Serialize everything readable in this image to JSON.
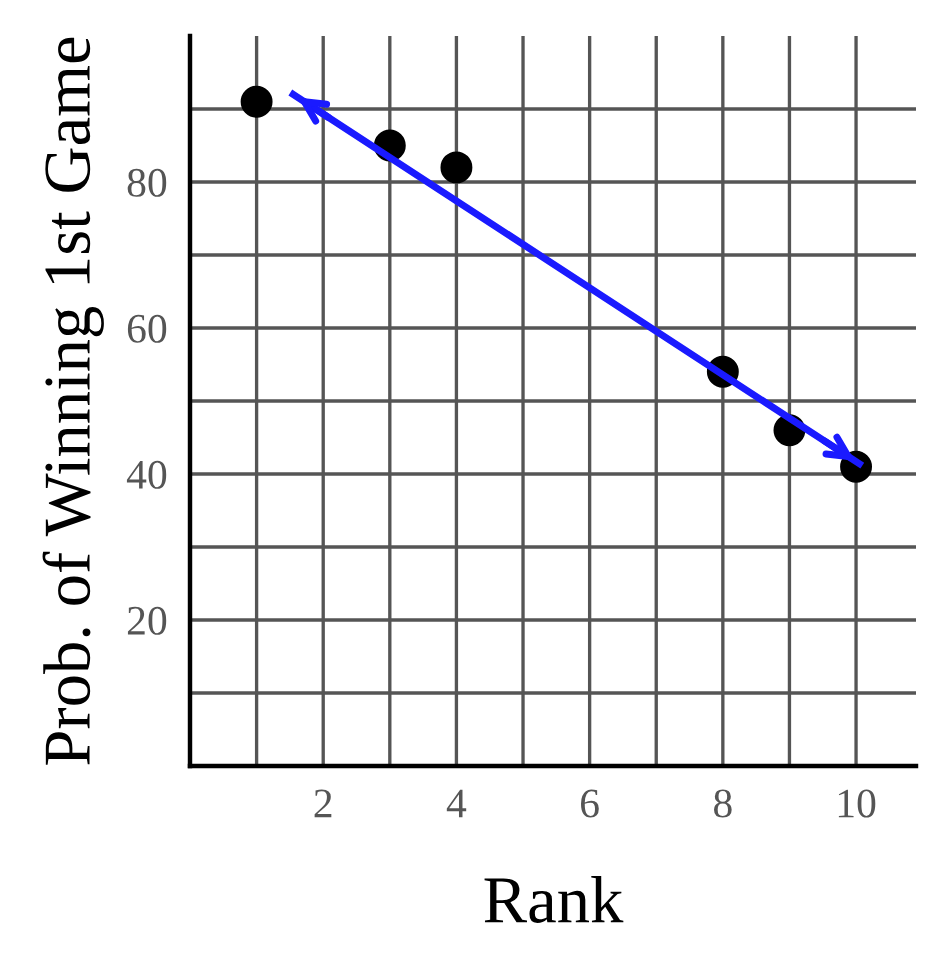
{
  "chart_data": {
    "type": "scatter",
    "xlabel": "Rank",
    "ylabel": "Prob. of Winning 1st Game",
    "series": [
      {
        "color": "#000000",
        "x": [
          1,
          3,
          4,
          8,
          9,
          10
        ],
        "values": [
          91,
          85,
          82,
          54,
          46,
          41
        ],
        "marker": "circle"
      },
      {
        "type": "line",
        "color": "#1a1aff",
        "x": [
          1.55,
          10.05
        ],
        "values": [
          92,
          41.4
        ]
      }
    ],
    "xlim": [
      0,
      10.9
    ],
    "ylim": [
      0,
      100
    ],
    "xticks": [
      {
        "value": 1,
        "label": null
      },
      2,
      {
        "value": 3,
        "label": null
      },
      4,
      {
        "value": 5,
        "label": null
      },
      6,
      {
        "value": 7,
        "label": null
      },
      8,
      {
        "value": 9,
        "label": null
      },
      10
    ],
    "yticks": [
      {
        "value": 10,
        "label": null
      },
      20,
      {
        "value": 30,
        "label": null
      },
      40,
      {
        "value": 50,
        "label": null
      },
      60,
      {
        "value": 70,
        "label": null
      },
      80,
      {
        "value": 90,
        "label": null
      }
    ],
    "grid": true
  }
}
